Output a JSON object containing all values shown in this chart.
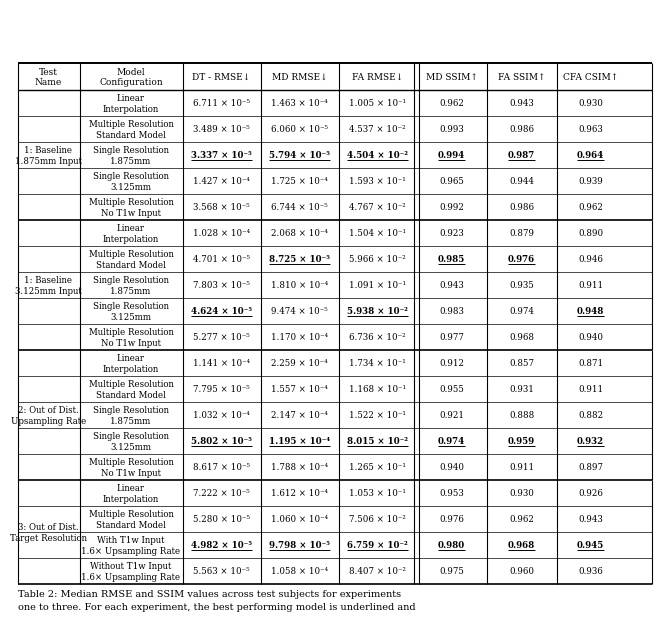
{
  "col_headers": [
    "Test\nName",
    "Model\nConfiguration",
    "DT - RMSE↓",
    "MD RMSE↓",
    "FA RMSE↓",
    "MD SSIM↑",
    "FA SSIM↑",
    "CFA CSIM↑"
  ],
  "sections": [
    {
      "row_label": "1: Baseline\n1.875mm Input",
      "rows": [
        {
          "model": "Linear\nInterpolation",
          "vals": [
            "6.711 × 10⁻⁵",
            "1.463 × 10⁻⁴",
            "1.005 × 10⁻¹",
            "0.962",
            "0.943",
            "0.930"
          ],
          "bold": []
        },
        {
          "model": "Multiple Resolution\nStandard Model",
          "vals": [
            "3.489 × 10⁻⁵",
            "6.060 × 10⁻⁵",
            "4.537 × 10⁻²",
            "0.993",
            "0.986",
            "0.963"
          ],
          "bold": []
        },
        {
          "model": "Single Resolution\n1.875mm",
          "vals": [
            "3.337 × 10⁻⁵",
            "5.794 × 10⁻⁵",
            "4.504 × 10⁻²",
            "0.994",
            "0.987",
            "0.964"
          ],
          "bold": [
            0,
            1,
            2,
            3,
            4,
            5
          ]
        },
        {
          "model": "Single Resolution\n3.125mm",
          "vals": [
            "1.427 × 10⁻⁴",
            "1.725 × 10⁻⁴",
            "1.593 × 10⁻¹",
            "0.965",
            "0.944",
            "0.939"
          ],
          "bold": []
        },
        {
          "model": "Multiple Resolution\nNo T1w Input",
          "vals": [
            "3.568 × 10⁻⁵",
            "6.744 × 10⁻⁵",
            "4.767 × 10⁻²",
            "0.992",
            "0.986",
            "0.962"
          ],
          "bold": []
        }
      ]
    },
    {
      "row_label": "1: Baseline\n3.125mm Input",
      "rows": [
        {
          "model": "Linear\nInterpolation",
          "vals": [
            "1.028 × 10⁻⁴",
            "2.068 × 10⁻⁴",
            "1.504 × 10⁻¹",
            "0.923",
            "0.879",
            "0.890"
          ],
          "bold": []
        },
        {
          "model": "Multiple Resolution\nStandard Model",
          "vals": [
            "4.701 × 10⁻⁵",
            "8.725 × 10⁻⁵",
            "5.966 × 10⁻²",
            "0.985",
            "0.976",
            "0.946"
          ],
          "bold": [
            1,
            3,
            4
          ]
        },
        {
          "model": "Single Resolution\n1.875mm",
          "vals": [
            "7.803 × 10⁻⁵",
            "1.810 × 10⁻⁴",
            "1.091 × 10⁻¹",
            "0.943",
            "0.935",
            "0.911"
          ],
          "bold": []
        },
        {
          "model": "Single Resolution\n3.125mm",
          "vals": [
            "4.624 × 10⁻⁵",
            "9.474 × 10⁻⁵",
            "5.938 × 10⁻²",
            "0.983",
            "0.974",
            "0.948"
          ],
          "bold": [
            0,
            2,
            5
          ]
        },
        {
          "model": "Multiple Resolution\nNo T1w Input",
          "vals": [
            "5.277 × 10⁻⁵",
            "1.170 × 10⁻⁴",
            "6.736 × 10⁻²",
            "0.977",
            "0.968",
            "0.940"
          ],
          "bold": []
        }
      ]
    },
    {
      "row_label": "2: Out of Dist.\nUpsampling Rate",
      "rows": [
        {
          "model": "Linear\nInterpolation",
          "vals": [
            "1.141 × 10⁻⁴",
            "2.259 × 10⁻⁴",
            "1.734 × 10⁻¹",
            "0.912",
            "0.857",
            "0.871"
          ],
          "bold": []
        },
        {
          "model": "Multiple Resolution\nStandard Model",
          "vals": [
            "7.795 × 10⁻⁵",
            "1.557 × 10⁻⁴",
            "1.168 × 10⁻¹",
            "0.955",
            "0.931",
            "0.911"
          ],
          "bold": []
        },
        {
          "model": "Single Resolution\n1.875mm",
          "vals": [
            "1.032 × 10⁻⁴",
            "2.147 × 10⁻⁴",
            "1.522 × 10⁻¹",
            "0.921",
            "0.888",
            "0.882"
          ],
          "bold": []
        },
        {
          "model": "Single Resolution\n3.125mm",
          "vals": [
            "5.802 × 10⁻⁵",
            "1.195 × 10⁻⁴",
            "8.015 × 10⁻²",
            "0.974",
            "0.959",
            "0.932"
          ],
          "bold": [
            0,
            1,
            2,
            3,
            4,
            5
          ]
        },
        {
          "model": "Multiple Resolution\nNo T1w Input",
          "vals": [
            "8.617 × 10⁻⁵",
            "1.788 × 10⁻⁴",
            "1.265 × 10⁻¹",
            "0.940",
            "0.911",
            "0.897"
          ],
          "bold": []
        }
      ]
    },
    {
      "row_label": "3: Out of Dist.\nTarget Resolution",
      "rows": [
        {
          "model": "Linear\nInterpolation",
          "vals": [
            "7.222 × 10⁻⁵",
            "1.612 × 10⁻⁴",
            "1.053 × 10⁻¹",
            "0.953",
            "0.930",
            "0.926"
          ],
          "bold": []
        },
        {
          "model": "Multiple Resolution\nStandard Model",
          "vals": [
            "5.280 × 10⁻⁵",
            "1.060 × 10⁻⁴",
            "7.506 × 10⁻²",
            "0.976",
            "0.962",
            "0.943"
          ],
          "bold": []
        },
        {
          "model": "With T1w Input\n1.6× Upsampling Rate",
          "vals": [
            "4.982 × 10⁻⁵",
            "9.798 × 10⁻⁵",
            "6.759 × 10⁻²",
            "0.980",
            "0.968",
            "0.945"
          ],
          "bold": [
            0,
            1,
            2,
            3,
            4,
            5
          ]
        },
        {
          "model": "Without T1w Input\n1.6× Upsampling Rate",
          "vals": [
            "5.563 × 10⁻⁵",
            "1.058 × 10⁻⁴",
            "8.407 × 10⁻²",
            "0.975",
            "0.960",
            "0.936"
          ],
          "bold": []
        }
      ]
    }
  ],
  "caption_line1": "Table 2: Median RMSE and SSIM values across test subjects for experiments",
  "caption_line2": "one to three. For each experiment, the best performing model is underlined and"
}
